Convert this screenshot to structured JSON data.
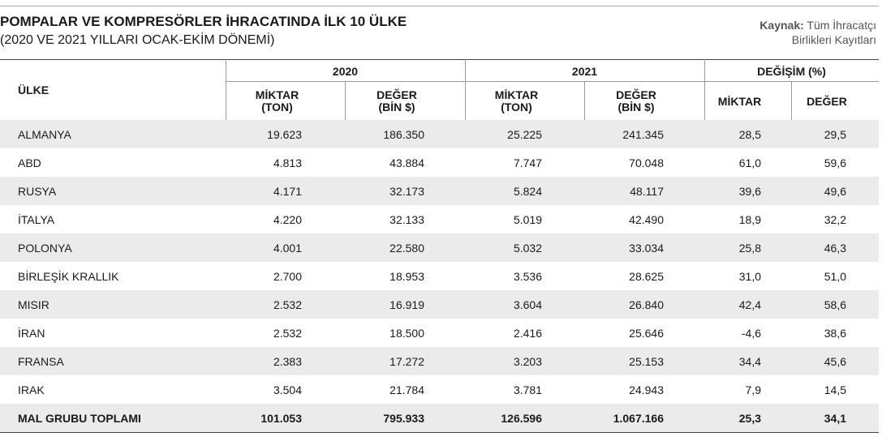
{
  "header": {
    "title": "POMPALAR VE KOMPRESÖRLER İHRACATINDA İLK 10 ÜLKE",
    "subtitle": "(2020 VE 2021 YILLARI OCAK-EKİM DÖNEMİ)"
  },
  "source": {
    "label": "Kaynak:",
    "lines": [
      "Tüm İhracatçı",
      "Birlikleri Kayıtları"
    ]
  },
  "table": {
    "first_header": "ÜLKE",
    "group_headers": [
      "2020",
      "2021",
      "DEĞİŞİM (%)"
    ],
    "sub_headers": [
      [
        "MİKTAR",
        "(TON)"
      ],
      [
        "DEĞER",
        "(BİN $)"
      ],
      [
        "MİKTAR",
        "(TON)"
      ],
      [
        "DEĞER",
        "(BİN $)"
      ],
      [
        "MİKTAR"
      ],
      [
        "DEĞER"
      ]
    ],
    "rows": [
      [
        "ALMANYA",
        "19.623",
        "186.350",
        "25.225",
        "241.345",
        "28,5",
        "29,5"
      ],
      [
        "ABD",
        "4.813",
        "43.884",
        "7.747",
        "70.048",
        "61,0",
        "59,6"
      ],
      [
        "RUSYA",
        "4.171",
        "32.173",
        "5.824",
        "48.117",
        "39,6",
        "49,6"
      ],
      [
        "İTALYA",
        "4.220",
        "32.133",
        "5.019",
        "42.490",
        "18,9",
        "32,2"
      ],
      [
        "POLONYA",
        "4.001",
        "22.580",
        "5.032",
        "33.034",
        "25,8",
        "46,3"
      ],
      [
        "BİRLEŞİK KRALLIK",
        "2.700",
        "18.953",
        "3.536",
        "28.625",
        "31,0",
        "51,0"
      ],
      [
        "MISIR",
        "2.532",
        "16.919",
        "3.604",
        "26.840",
        "42,4",
        "58,6"
      ],
      [
        "İRAN",
        "2.532",
        "18.500",
        "2.416",
        "25.646",
        "-4,6",
        "38,6"
      ],
      [
        "FRANSA",
        "2.383",
        "17.272",
        "3.203",
        "25.153",
        "34,4",
        "45,6"
      ],
      [
        "IRAK",
        "3.504",
        "21.784",
        "3.781",
        "24.943",
        "7,9",
        "14,5"
      ]
    ],
    "total": [
      "MAL GRUBU TOPLAMI",
      "101.053",
      "795.933",
      "126.596",
      "1.067.166",
      "25,3",
      "34,1"
    ]
  }
}
